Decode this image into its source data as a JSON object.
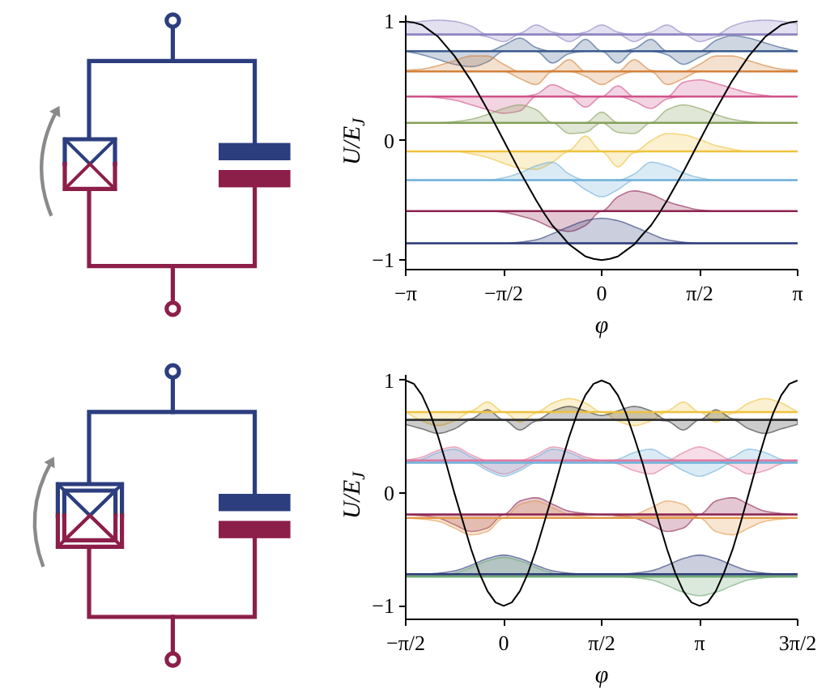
{
  "chart_data": [
    {
      "type": "line",
      "xlabel": "φ",
      "ylabel": "U/E$_{J}$",
      "xlim": [
        -3.1416,
        3.1416
      ],
      "ylim": [
        -1.08,
        1.05
      ],
      "xticks": [
        {
          "value": -3.1416,
          "label": "−π"
        },
        {
          "value": -1.5708,
          "label": "−π/2"
        },
        0,
        {
          "value": 1.5708,
          "label": "π/2"
        },
        {
          "value": 3.1416,
          "label": "π"
        }
      ],
      "yticks": [
        -1,
        0,
        1
      ],
      "x": [
        -3.14,
        -2.88,
        -2.62,
        -2.36,
        -2.09,
        -1.83,
        -1.57,
        -1.31,
        -1.05,
        -0.79,
        -0.52,
        -0.26,
        0,
        0.26,
        0.52,
        0.79,
        1.05,
        1.31,
        1.57,
        1.83,
        2.09,
        2.36,
        2.62,
        2.88,
        3.14
      ],
      "series": [
        {
          "color": "#8f86c2",
          "values": [
            0.89,
            0.89,
            0.89,
            0.89,
            0.89,
            0.89,
            0.89,
            0.89,
            0.89,
            0.89,
            0.89,
            0.89,
            0.89,
            0.89,
            0.89,
            0.89,
            0.89,
            0.89,
            0.89,
            0.89,
            0.89,
            0.89,
            0.89,
            0.89,
            0.89
          ],
          "upper": [
            0.98,
            1.0,
            1.01,
            1.0,
            0.96,
            0.89,
            0.89,
            0.9,
            0.97,
            0.91,
            0.89,
            0.91,
            0.97,
            0.91,
            0.89,
            0.91,
            0.97,
            0.9,
            0.89,
            0.89,
            0.96,
            1.0,
            1.01,
            1.0,
            0.98
          ],
          "lower": [
            0.89,
            0.89,
            0.89,
            0.89,
            0.89,
            0.87,
            0.83,
            0.89,
            0.89,
            0.89,
            0.83,
            0.89,
            0.89,
            0.89,
            0.83,
            0.89,
            0.89,
            0.89,
            0.83,
            0.87,
            0.89,
            0.89,
            0.89,
            0.89,
            0.89
          ]
        },
        {
          "color": "#3a5a8c",
          "values": [
            0.75,
            0.75,
            0.75,
            0.75,
            0.75,
            0.75,
            0.75,
            0.75,
            0.75,
            0.75,
            0.75,
            0.75,
            0.75,
            0.75,
            0.75,
            0.75,
            0.75,
            0.75,
            0.75,
            0.75,
            0.75,
            0.75,
            0.75,
            0.75,
            0.75
          ],
          "upper": [
            0.75,
            0.75,
            0.75,
            0.75,
            0.75,
            0.75,
            0.8,
            0.86,
            0.78,
            0.75,
            0.75,
            0.85,
            0.75,
            0.75,
            0.77,
            0.85,
            0.75,
            0.75,
            0.75,
            0.84,
            0.88,
            0.86,
            0.82,
            0.78,
            0.75
          ],
          "lower": [
            0.75,
            0.72,
            0.68,
            0.64,
            0.62,
            0.66,
            0.75,
            0.75,
            0.75,
            0.65,
            0.73,
            0.75,
            0.75,
            0.65,
            0.75,
            0.75,
            0.72,
            0.64,
            0.7,
            0.75,
            0.75,
            0.75,
            0.75,
            0.75,
            0.75
          ]
        },
        {
          "color": "#d4823c",
          "values": [
            0.58,
            0.58,
            0.58,
            0.58,
            0.58,
            0.58,
            0.58,
            0.58,
            0.58,
            0.58,
            0.58,
            0.58,
            0.58,
            0.58,
            0.58,
            0.58,
            0.58,
            0.58,
            0.58,
            0.58,
            0.58,
            0.58,
            0.58,
            0.58,
            0.58
          ],
          "upper": [
            0.59,
            0.6,
            0.63,
            0.67,
            0.71,
            0.71,
            0.64,
            0.58,
            0.58,
            0.59,
            0.68,
            0.58,
            0.58,
            0.58,
            0.68,
            0.59,
            0.58,
            0.58,
            0.64,
            0.71,
            0.71,
            0.67,
            0.63,
            0.6,
            0.59
          ],
          "lower": [
            0.58,
            0.58,
            0.58,
            0.58,
            0.58,
            0.58,
            0.58,
            0.52,
            0.47,
            0.58,
            0.58,
            0.54,
            0.47,
            0.54,
            0.58,
            0.58,
            0.47,
            0.52,
            0.58,
            0.58,
            0.58,
            0.58,
            0.58,
            0.58,
            0.58
          ]
        },
        {
          "color": "#d0528a",
          "values": [
            0.37,
            0.37,
            0.37,
            0.37,
            0.37,
            0.37,
            0.37,
            0.37,
            0.37,
            0.37,
            0.37,
            0.37,
            0.37,
            0.37,
            0.37,
            0.37,
            0.37,
            0.37,
            0.37,
            0.37,
            0.37,
            0.37,
            0.37,
            0.37,
            0.37
          ],
          "upper": [
            0.37,
            0.37,
            0.37,
            0.37,
            0.37,
            0.37,
            0.37,
            0.37,
            0.39,
            0.47,
            0.41,
            0.37,
            0.37,
            0.46,
            0.37,
            0.37,
            0.37,
            0.49,
            0.51,
            0.48,
            0.44,
            0.4,
            0.38,
            0.37,
            0.37
          ],
          "lower": [
            0.37,
            0.37,
            0.36,
            0.34,
            0.3,
            0.26,
            0.23,
            0.25,
            0.37,
            0.37,
            0.37,
            0.28,
            0.37,
            0.37,
            0.33,
            0.27,
            0.35,
            0.37,
            0.37,
            0.37,
            0.37,
            0.37,
            0.37,
            0.37,
            0.37
          ]
        },
        {
          "color": "#86a05a",
          "values": [
            0.15,
            0.15,
            0.15,
            0.15,
            0.15,
            0.15,
            0.15,
            0.15,
            0.15,
            0.15,
            0.15,
            0.15,
            0.15,
            0.15,
            0.15,
            0.15,
            0.15,
            0.15,
            0.15,
            0.15,
            0.15,
            0.15,
            0.15,
            0.15,
            0.15
          ],
          "upper": [
            0.15,
            0.15,
            0.15,
            0.16,
            0.18,
            0.22,
            0.27,
            0.3,
            0.26,
            0.15,
            0.15,
            0.15,
            0.24,
            0.15,
            0.15,
            0.15,
            0.26,
            0.3,
            0.27,
            0.22,
            0.18,
            0.16,
            0.15,
            0.15,
            0.15
          ],
          "lower": [
            0.15,
            0.15,
            0.15,
            0.15,
            0.15,
            0.15,
            0.15,
            0.15,
            0.15,
            0.15,
            0.06,
            0.07,
            0.15,
            0.07,
            0.06,
            0.15,
            0.15,
            0.15,
            0.15,
            0.15,
            0.15,
            0.15,
            0.15,
            0.15,
            0.15
          ]
        },
        {
          "color": "#eec23e",
          "values": [
            -0.09,
            -0.09,
            -0.09,
            -0.09,
            -0.09,
            -0.09,
            -0.09,
            -0.09,
            -0.09,
            -0.09,
            -0.09,
            -0.09,
            -0.09,
            -0.09,
            -0.09,
            -0.09,
            -0.09,
            -0.09,
            -0.09,
            -0.09,
            -0.09,
            -0.09,
            -0.09,
            -0.09,
            -0.09
          ],
          "upper": [
            -0.09,
            -0.09,
            -0.09,
            -0.09,
            -0.09,
            -0.09,
            -0.09,
            -0.09,
            -0.09,
            -0.09,
            -0.08,
            0.04,
            -0.09,
            -0.09,
            -0.09,
            0.0,
            0.06,
            0.05,
            0.01,
            -0.04,
            -0.07,
            -0.09,
            -0.09,
            -0.09,
            -0.09
          ],
          "lower": [
            -0.09,
            -0.09,
            -0.09,
            -0.09,
            -0.11,
            -0.14,
            -0.19,
            -0.23,
            -0.24,
            -0.18,
            -0.09,
            -0.09,
            -0.09,
            -0.22,
            -0.1,
            -0.09,
            -0.09,
            -0.09,
            -0.09,
            -0.09,
            -0.09,
            -0.09,
            -0.09,
            -0.09,
            -0.09
          ]
        },
        {
          "color": "#6fb0d8",
          "values": [
            -0.33,
            -0.33,
            -0.33,
            -0.33,
            -0.33,
            -0.33,
            -0.33,
            -0.33,
            -0.33,
            -0.33,
            -0.33,
            -0.33,
            -0.33,
            -0.33,
            -0.33,
            -0.33,
            -0.33,
            -0.33,
            -0.33,
            -0.33,
            -0.33,
            -0.33,
            -0.33,
            -0.33,
            -0.33
          ],
          "upper": [
            -0.33,
            -0.33,
            -0.33,
            -0.33,
            -0.33,
            -0.33,
            -0.31,
            -0.27,
            -0.21,
            -0.18,
            -0.28,
            -0.33,
            -0.33,
            -0.33,
            -0.28,
            -0.18,
            -0.21,
            -0.27,
            -0.31,
            -0.33,
            -0.33,
            -0.33,
            -0.33,
            -0.33,
            -0.33
          ],
          "lower": [
            -0.33,
            -0.33,
            -0.33,
            -0.33,
            -0.33,
            -0.33,
            -0.33,
            -0.33,
            -0.33,
            -0.33,
            -0.33,
            -0.41,
            -0.47,
            -0.41,
            -0.33,
            -0.33,
            -0.33,
            -0.33,
            -0.33,
            -0.33,
            -0.33,
            -0.33,
            -0.33,
            -0.33,
            -0.33
          ]
        },
        {
          "color": "#8e2350",
          "values": [
            -0.59,
            -0.59,
            -0.59,
            -0.59,
            -0.59,
            -0.59,
            -0.59,
            -0.59,
            -0.59,
            -0.59,
            -0.59,
            -0.59,
            -0.59,
            -0.59,
            -0.59,
            -0.59,
            -0.59,
            -0.59,
            -0.59,
            -0.59,
            -0.59,
            -0.59,
            -0.59,
            -0.59,
            -0.59
          ],
          "upper": [
            -0.59,
            -0.59,
            -0.59,
            -0.59,
            -0.59,
            -0.59,
            -0.59,
            -0.59,
            -0.59,
            -0.59,
            -0.59,
            -0.59,
            -0.59,
            -0.47,
            -0.42,
            -0.45,
            -0.51,
            -0.55,
            -0.58,
            -0.59,
            -0.59,
            -0.59,
            -0.59,
            -0.59,
            -0.59
          ],
          "lower": [
            -0.59,
            -0.59,
            -0.59,
            -0.59,
            -0.59,
            -0.59,
            -0.6,
            -0.63,
            -0.67,
            -0.73,
            -0.76,
            -0.71,
            -0.59,
            -0.59,
            -0.59,
            -0.59,
            -0.59,
            -0.59,
            -0.59,
            -0.59,
            -0.59,
            -0.59,
            -0.59,
            -0.59,
            -0.59
          ]
        },
        {
          "color": "#2d3b78",
          "values": [
            -0.86,
            -0.86,
            -0.86,
            -0.86,
            -0.86,
            -0.86,
            -0.86,
            -0.86,
            -0.86,
            -0.86,
            -0.86,
            -0.86,
            -0.86,
            -0.86,
            -0.86,
            -0.86,
            -0.86,
            -0.86,
            -0.86,
            -0.86,
            -0.86,
            -0.86,
            -0.86,
            -0.86,
            -0.86
          ],
          "upper": [
            -0.86,
            -0.86,
            -0.86,
            -0.86,
            -0.86,
            -0.86,
            -0.86,
            -0.85,
            -0.83,
            -0.78,
            -0.72,
            -0.67,
            -0.65,
            -0.67,
            -0.72,
            -0.78,
            -0.83,
            -0.85,
            -0.86,
            -0.86,
            -0.86,
            -0.86,
            -0.86,
            -0.86,
            -0.86
          ],
          "lower": [
            -0.86,
            -0.86,
            -0.86,
            -0.86,
            -0.86,
            -0.86,
            -0.86,
            -0.86,
            -0.86,
            -0.86,
            -0.86,
            -0.86,
            -0.86,
            -0.86,
            -0.86,
            -0.86,
            -0.86,
            -0.86,
            -0.86,
            -0.86,
            -0.86,
            -0.86,
            -0.86,
            -0.86,
            -0.86
          ]
        },
        {
          "color": "#000000",
          "x": [
            -3.14,
            -3.01,
            -2.88,
            -2.75,
            -2.62,
            -2.49,
            -2.36,
            -2.23,
            -2.09,
            -1.96,
            -1.83,
            -1.7,
            -1.57,
            -1.44,
            -1.31,
            -1.18,
            -1.05,
            -0.92,
            -0.79,
            -0.65,
            -0.52,
            -0.39,
            -0.26,
            -0.13,
            0,
            0.13,
            0.26,
            0.39,
            0.52,
            0.65,
            0.79,
            0.92,
            1.05,
            1.18,
            1.31,
            1.44,
            1.57,
            1.7,
            1.83,
            1.96,
            2.09,
            2.23,
            2.36,
            2.49,
            2.62,
            2.75,
            2.88,
            3.01,
            3.14
          ],
          "values": [
            1,
            0.99,
            0.97,
            0.92,
            0.87,
            0.79,
            0.71,
            0.61,
            0.5,
            0.38,
            0.26,
            0.13,
            0,
            -0.13,
            -0.26,
            -0.38,
            -0.5,
            -0.61,
            -0.71,
            -0.79,
            -0.87,
            -0.92,
            -0.97,
            -0.99,
            -1,
            -0.99,
            -0.97,
            -0.92,
            -0.87,
            -0.79,
            -0.71,
            -0.61,
            -0.5,
            -0.38,
            -0.26,
            -0.13,
            0,
            0.13,
            0.26,
            0.38,
            0.5,
            0.61,
            0.71,
            0.79,
            0.87,
            0.92,
            0.97,
            0.99,
            1
          ]
        }
      ]
    },
    {
      "type": "line",
      "xlabel": "φ",
      "ylabel": "U/E$_{J}$",
      "xlim": [
        -1.5708,
        4.7124
      ],
      "ylim": [
        -1.12,
        1.05
      ],
      "xticks": [
        {
          "value": -1.5708,
          "label": "−π/2"
        },
        0,
        {
          "value": 1.5708,
          "label": "π/2"
        },
        {
          "value": 3.1416,
          "label": "π"
        },
        {
          "value": 4.7124,
          "label": "3π/2"
        }
      ],
      "yticks": [
        -1,
        0,
        1
      ],
      "x": [
        -1.57,
        -1.31,
        -1.05,
        -0.79,
        -0.52,
        -0.26,
        0,
        0.26,
        0.52,
        0.79,
        1.05,
        1.31,
        1.57,
        1.83,
        2.09,
        2.36,
        2.62,
        2.88,
        3.14,
        3.4,
        3.67,
        3.93,
        4.19,
        4.45,
        4.71
      ],
      "series": [
        {
          "color": "#eec23e",
          "values": [
            0.72,
            0.72,
            0.72,
            0.72,
            0.72,
            0.72,
            0.72,
            0.72,
            0.72,
            0.72,
            0.72,
            0.72,
            0.72,
            0.72,
            0.72,
            0.72,
            0.72,
            0.72,
            0.72,
            0.72,
            0.72,
            0.72,
            0.72,
            0.72,
            0.72
          ],
          "upper": [
            0.72,
            0.72,
            0.72,
            0.72,
            0.73,
            0.81,
            0.72,
            0.72,
            0.72,
            0.8,
            0.84,
            0.8,
            0.72,
            0.72,
            0.72,
            0.72,
            0.73,
            0.81,
            0.72,
            0.72,
            0.72,
            0.8,
            0.84,
            0.8,
            0.72
          ],
          "lower": [
            0.72,
            0.64,
            0.6,
            0.64,
            0.72,
            0.72,
            0.72,
            0.63,
            0.71,
            0.72,
            0.72,
            0.72,
            0.72,
            0.64,
            0.6,
            0.64,
            0.72,
            0.72,
            0.72,
            0.63,
            0.71,
            0.72,
            0.72,
            0.72,
            0.72
          ]
        },
        {
          "color": "#333333",
          "values": [
            0.65,
            0.65,
            0.65,
            0.65,
            0.65,
            0.65,
            0.65,
            0.65,
            0.65,
            0.65,
            0.65,
            0.65,
            0.65,
            0.65,
            0.65,
            0.65,
            0.65,
            0.65,
            0.65,
            0.65,
            0.65,
            0.65,
            0.65,
            0.65,
            0.65
          ],
          "upper": [
            0.65,
            0.65,
            0.65,
            0.65,
            0.66,
            0.74,
            0.65,
            0.65,
            0.65,
            0.73,
            0.77,
            0.73,
            0.69,
            0.73,
            0.77,
            0.73,
            0.65,
            0.65,
            0.65,
            0.74,
            0.66,
            0.65,
            0.65,
            0.65,
            0.65
          ],
          "lower": [
            0.61,
            0.57,
            0.53,
            0.57,
            0.65,
            0.65,
            0.65,
            0.56,
            0.64,
            0.65,
            0.65,
            0.65,
            0.65,
            0.65,
            0.65,
            0.65,
            0.64,
            0.56,
            0.65,
            0.65,
            0.65,
            0.57,
            0.53,
            0.57,
            0.61
          ]
        },
        {
          "color": "#e0779f",
          "values": [
            0.29,
            0.29,
            0.29,
            0.29,
            0.29,
            0.29,
            0.29,
            0.29,
            0.29,
            0.29,
            0.29,
            0.29,
            0.29,
            0.29,
            0.29,
            0.29,
            0.29,
            0.29,
            0.29,
            0.29,
            0.29,
            0.29,
            0.29,
            0.29,
            0.29
          ],
          "upper": [
            0.29,
            0.32,
            0.38,
            0.41,
            0.34,
            0.29,
            0.29,
            0.29,
            0.34,
            0.41,
            0.38,
            0.32,
            0.29,
            0.29,
            0.29,
            0.29,
            0.29,
            0.36,
            0.41,
            0.36,
            0.29,
            0.29,
            0.29,
            0.29,
            0.29
          ],
          "lower": [
            0.29,
            0.29,
            0.29,
            0.29,
            0.29,
            0.22,
            0.17,
            0.22,
            0.29,
            0.29,
            0.29,
            0.29,
            0.29,
            0.26,
            0.2,
            0.17,
            0.24,
            0.29,
            0.29,
            0.29,
            0.24,
            0.17,
            0.2,
            0.26,
            0.29
          ]
        },
        {
          "color": "#6fb0d8",
          "values": [
            0.27,
            0.27,
            0.27,
            0.27,
            0.27,
            0.27,
            0.27,
            0.27,
            0.27,
            0.27,
            0.27,
            0.27,
            0.27,
            0.27,
            0.27,
            0.27,
            0.27,
            0.27,
            0.27,
            0.27,
            0.27,
            0.27,
            0.27,
            0.27,
            0.27
          ],
          "upper": [
            0.27,
            0.3,
            0.36,
            0.39,
            0.32,
            0.27,
            0.27,
            0.27,
            0.32,
            0.39,
            0.36,
            0.3,
            0.27,
            0.3,
            0.36,
            0.39,
            0.32,
            0.27,
            0.27,
            0.27,
            0.32,
            0.39,
            0.36,
            0.3,
            0.27
          ],
          "lower": [
            0.27,
            0.27,
            0.27,
            0.27,
            0.27,
            0.2,
            0.15,
            0.2,
            0.27,
            0.27,
            0.27,
            0.27,
            0.27,
            0.27,
            0.27,
            0.27,
            0.27,
            0.2,
            0.15,
            0.2,
            0.27,
            0.27,
            0.27,
            0.27,
            0.27
          ]
        },
        {
          "color": "#8e2350",
          "values": [
            -0.19,
            -0.19,
            -0.19,
            -0.19,
            -0.19,
            -0.19,
            -0.19,
            -0.19,
            -0.19,
            -0.19,
            -0.19,
            -0.19,
            -0.19,
            -0.19,
            -0.19,
            -0.19,
            -0.19,
            -0.19,
            -0.19,
            -0.19,
            -0.19,
            -0.19,
            -0.19,
            -0.19,
            -0.19
          ],
          "upper": [
            -0.19,
            -0.19,
            -0.19,
            -0.19,
            -0.19,
            -0.19,
            -0.19,
            -0.07,
            -0.04,
            -0.1,
            -0.16,
            -0.18,
            -0.19,
            -0.19,
            -0.19,
            -0.19,
            -0.19,
            -0.19,
            -0.19,
            -0.07,
            -0.04,
            -0.1,
            -0.16,
            -0.18,
            -0.19
          ],
          "lower": [
            -0.19,
            -0.2,
            -0.22,
            -0.28,
            -0.34,
            -0.31,
            -0.19,
            -0.19,
            -0.19,
            -0.19,
            -0.19,
            -0.19,
            -0.19,
            -0.2,
            -0.22,
            -0.28,
            -0.34,
            -0.31,
            -0.19,
            -0.19,
            -0.19,
            -0.19,
            -0.19,
            -0.19,
            -0.19
          ]
        },
        {
          "color": "#e39a4b",
          "values": [
            -0.22,
            -0.22,
            -0.22,
            -0.22,
            -0.22,
            -0.22,
            -0.22,
            -0.22,
            -0.22,
            -0.22,
            -0.22,
            -0.22,
            -0.22,
            -0.22,
            -0.22,
            -0.22,
            -0.22,
            -0.22,
            -0.22,
            -0.22,
            -0.22,
            -0.22,
            -0.22,
            -0.22,
            -0.22
          ],
          "upper": [
            -0.22,
            -0.22,
            -0.22,
            -0.22,
            -0.22,
            -0.22,
            -0.22,
            -0.1,
            -0.07,
            -0.13,
            -0.19,
            -0.21,
            -0.22,
            -0.21,
            -0.19,
            -0.13,
            -0.07,
            -0.1,
            -0.22,
            -0.22,
            -0.22,
            -0.22,
            -0.22,
            -0.22,
            -0.22
          ],
          "lower": [
            -0.22,
            -0.23,
            -0.25,
            -0.31,
            -0.37,
            -0.34,
            -0.22,
            -0.22,
            -0.22,
            -0.22,
            -0.22,
            -0.22,
            -0.22,
            -0.22,
            -0.22,
            -0.22,
            -0.22,
            -0.22,
            -0.22,
            -0.34,
            -0.37,
            -0.31,
            -0.25,
            -0.23,
            -0.22
          ]
        },
        {
          "color": "#2d3b78",
          "values": [
            -0.72,
            -0.72,
            -0.72,
            -0.72,
            -0.72,
            -0.72,
            -0.72,
            -0.72,
            -0.72,
            -0.72,
            -0.72,
            -0.72,
            -0.72,
            -0.72,
            -0.72,
            -0.72,
            -0.72,
            -0.72,
            -0.72,
            -0.72,
            -0.72,
            -0.72,
            -0.72,
            -0.72,
            -0.72
          ],
          "upper": [
            -0.72,
            -0.72,
            -0.71,
            -0.69,
            -0.64,
            -0.58,
            -0.55,
            -0.58,
            -0.64,
            -0.69,
            -0.71,
            -0.72,
            -0.72,
            -0.72,
            -0.71,
            -0.69,
            -0.64,
            -0.58,
            -0.55,
            -0.58,
            -0.64,
            -0.69,
            -0.71,
            -0.72,
            -0.72
          ],
          "lower": [
            -0.72,
            -0.72,
            -0.72,
            -0.72,
            -0.72,
            -0.72,
            -0.72,
            -0.72,
            -0.72,
            -0.72,
            -0.72,
            -0.72,
            -0.72,
            -0.72,
            -0.72,
            -0.72,
            -0.72,
            -0.72,
            -0.72,
            -0.72,
            -0.72,
            -0.72,
            -0.72,
            -0.72,
            -0.72
          ]
        },
        {
          "color": "#6ea874",
          "values": [
            -0.74,
            -0.74,
            -0.74,
            -0.74,
            -0.74,
            -0.74,
            -0.74,
            -0.74,
            -0.74,
            -0.74,
            -0.74,
            -0.74,
            -0.74,
            -0.74,
            -0.74,
            -0.74,
            -0.74,
            -0.74,
            -0.74,
            -0.74,
            -0.74,
            -0.74,
            -0.74,
            -0.74,
            -0.74
          ],
          "upper": [
            -0.74,
            -0.74,
            -0.73,
            -0.71,
            -0.66,
            -0.6,
            -0.57,
            -0.6,
            -0.66,
            -0.71,
            -0.73,
            -0.74,
            -0.74,
            -0.74,
            -0.74,
            -0.74,
            -0.74,
            -0.74,
            -0.74,
            -0.74,
            -0.74,
            -0.74,
            -0.74,
            -0.74,
            -0.74
          ],
          "lower": [
            -0.74,
            -0.74,
            -0.74,
            -0.74,
            -0.74,
            -0.74,
            -0.74,
            -0.74,
            -0.74,
            -0.74,
            -0.74,
            -0.74,
            -0.74,
            -0.74,
            -0.75,
            -0.77,
            -0.82,
            -0.88,
            -0.91,
            -0.88,
            -0.82,
            -0.77,
            -0.75,
            -0.74,
            -0.74
          ]
        },
        {
          "color": "#000000",
          "x": [
            -1.57,
            -1.44,
            -1.31,
            -1.18,
            -1.05,
            -0.92,
            -0.79,
            -0.65,
            -0.52,
            -0.39,
            -0.26,
            -0.13,
            0,
            0.13,
            0.26,
            0.39,
            0.52,
            0.65,
            0.79,
            0.92,
            1.05,
            1.18,
            1.31,
            1.44,
            1.57,
            1.7,
            1.83,
            1.96,
            2.09,
            2.23,
            2.36,
            2.49,
            2.62,
            2.75,
            2.88,
            3.01,
            3.14,
            3.27,
            3.4,
            3.53,
            3.67,
            3.8,
            3.93,
            4.06,
            4.19,
            4.32,
            4.45,
            4.58,
            4.71
          ],
          "values": [
            1,
            0.97,
            0.87,
            0.71,
            0.5,
            0.26,
            0,
            -0.26,
            -0.5,
            -0.71,
            -0.87,
            -0.97,
            -1,
            -0.97,
            -0.87,
            -0.71,
            -0.5,
            -0.26,
            0,
            0.26,
            0.5,
            0.71,
            0.87,
            0.97,
            1,
            0.97,
            0.87,
            0.71,
            0.5,
            0.26,
            0,
            -0.26,
            -0.5,
            -0.71,
            -0.87,
            -0.97,
            -1,
            -0.97,
            -0.87,
            -0.71,
            -0.5,
            -0.26,
            0,
            0.26,
            0.5,
            0.71,
            0.87,
            0.97,
            1
          ]
        }
      ]
    }
  ]
}
